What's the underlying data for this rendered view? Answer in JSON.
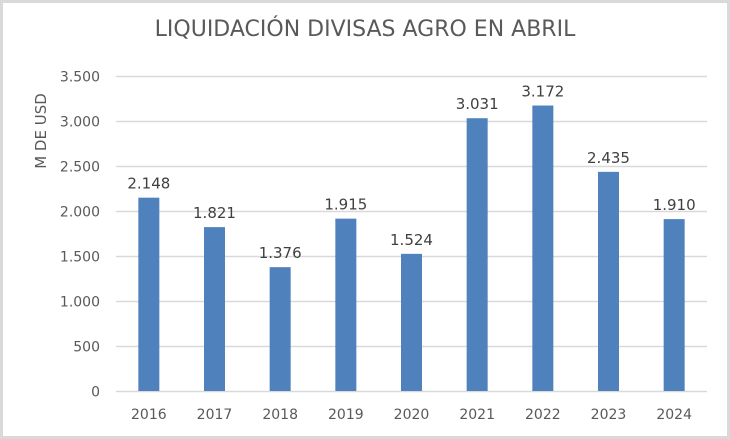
{
  "chart_data": {
    "type": "bar",
    "title": "LIQUIDACIÓN DIVISAS AGRO EN ABRIL",
    "xlabel": "",
    "ylabel": "M DE USD",
    "categories": [
      "2016",
      "2017",
      "2018",
      "2019",
      "2020",
      "2021",
      "2022",
      "2023",
      "2024"
    ],
    "values": [
      2148,
      1821,
      1376,
      1915,
      1524,
      3031,
      3172,
      2435,
      1910
    ],
    "value_labels": [
      "2.148",
      "1.821",
      "1.376",
      "1.915",
      "1.524",
      "3.031",
      "3.172",
      "2.435",
      "1.910"
    ],
    "ylim": [
      0,
      3500
    ],
    "yticks": [
      0,
      500,
      1000,
      1500,
      2000,
      2500,
      3000,
      3500
    ],
    "ytick_labels": [
      "0",
      "500",
      "1.000",
      "1.500",
      "2.000",
      "2.500",
      "3.000",
      "3.500"
    ],
    "grid": true,
    "legend": "none",
    "bar_color": "#4f81bd",
    "grid_color": "#d9d9d9"
  }
}
